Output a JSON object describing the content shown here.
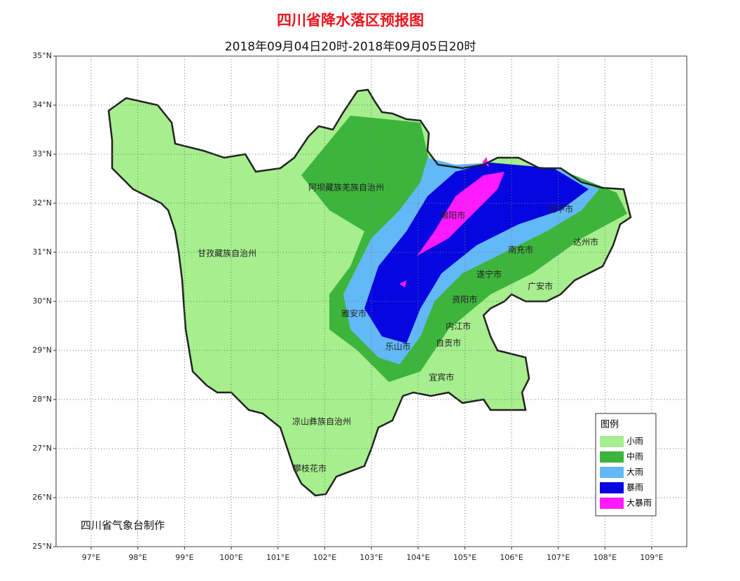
{
  "header": {
    "title": "四川省降水落区预报图",
    "subtitle": "2018年09月04日20时-2018年09月05日20时"
  },
  "axes": {
    "xlim": [
      96.25,
      109.75
    ],
    "ylim": [
      25,
      35
    ],
    "xticks": [
      {
        "value": 97,
        "label": "97°E"
      },
      {
        "value": 98,
        "label": "98°E"
      },
      {
        "value": 99,
        "label": "99°E"
      },
      {
        "value": 100,
        "label": "100°E"
      },
      {
        "value": 101,
        "label": "101°E"
      },
      {
        "value": 102,
        "label": "102°E"
      },
      {
        "value": 103,
        "label": "103°E"
      },
      {
        "value": 104,
        "label": "104°E"
      },
      {
        "value": 105,
        "label": "105°E"
      },
      {
        "value": 106,
        "label": "106°E"
      },
      {
        "value": 107,
        "label": "107°E"
      },
      {
        "value": 108,
        "label": "108°E"
      },
      {
        "value": 109,
        "label": "109°E"
      }
    ],
    "yticks": [
      {
        "value": 25,
        "label": "25°N"
      },
      {
        "value": 26,
        "label": "26°N"
      },
      {
        "value": 27,
        "label": "27°N"
      },
      {
        "value": 28,
        "label": "28°N"
      },
      {
        "value": 29,
        "label": "29°N"
      },
      {
        "value": 30,
        "label": "30°N"
      },
      {
        "value": 31,
        "label": "31°N"
      },
      {
        "value": 32,
        "label": "32°N"
      },
      {
        "value": 33,
        "label": "33°N"
      },
      {
        "value": 34,
        "label": "34°N"
      },
      {
        "value": 35,
        "label": "35°N"
      }
    ],
    "grid": true
  },
  "places": [
    "阿坝藏族羌族自治州",
    "甘孜藏族自治州",
    "绵阳市",
    "巴中市",
    "达州市",
    "南充市",
    "遂宁市",
    "广安市",
    "雅安市",
    "资阳市",
    "内江市",
    "自贡市",
    "乐山市",
    "宜宾市",
    "凉山彝族自治州",
    "攀枝花市"
  ],
  "legend": {
    "title": "图例",
    "items": [
      {
        "label": "小雨",
        "color": "#a6ee8e"
      },
      {
        "label": "中雨",
        "color": "#3db53d"
      },
      {
        "label": "大雨",
        "color": "#63b8f7"
      },
      {
        "label": "暴雨",
        "color": "#0606e0"
      },
      {
        "label": "大暴雨",
        "color": "#ff1aff"
      }
    ]
  },
  "credit": "四川省气象台制作"
}
